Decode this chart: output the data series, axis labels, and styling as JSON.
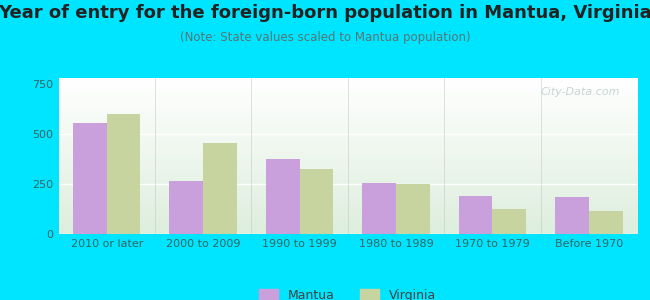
{
  "title": "Year of entry for the foreign-born population in Mantua, Virginia",
  "subtitle": "(Note: State values scaled to Mantua population)",
  "categories": [
    "2010 or later",
    "2000 to 2009",
    "1990 to 1999",
    "1980 to 1989",
    "1970 to 1979",
    "Before 1970"
  ],
  "mantua_values": [
    555,
    265,
    375,
    255,
    190,
    185
  ],
  "virginia_values": [
    600,
    455,
    325,
    248,
    125,
    115
  ],
  "mantua_color": "#c9a0dc",
  "virginia_color": "#c8d4a0",
  "background_color": "#00e5ff",
  "ylim": [
    0,
    780
  ],
  "yticks": [
    0,
    250,
    500,
    750
  ],
  "bar_width": 0.35,
  "title_fontsize": 13,
  "subtitle_fontsize": 8.5,
  "tick_fontsize": 8,
  "legend_labels": [
    "Mantua",
    "Virginia"
  ],
  "watermark": "City-Data.com"
}
